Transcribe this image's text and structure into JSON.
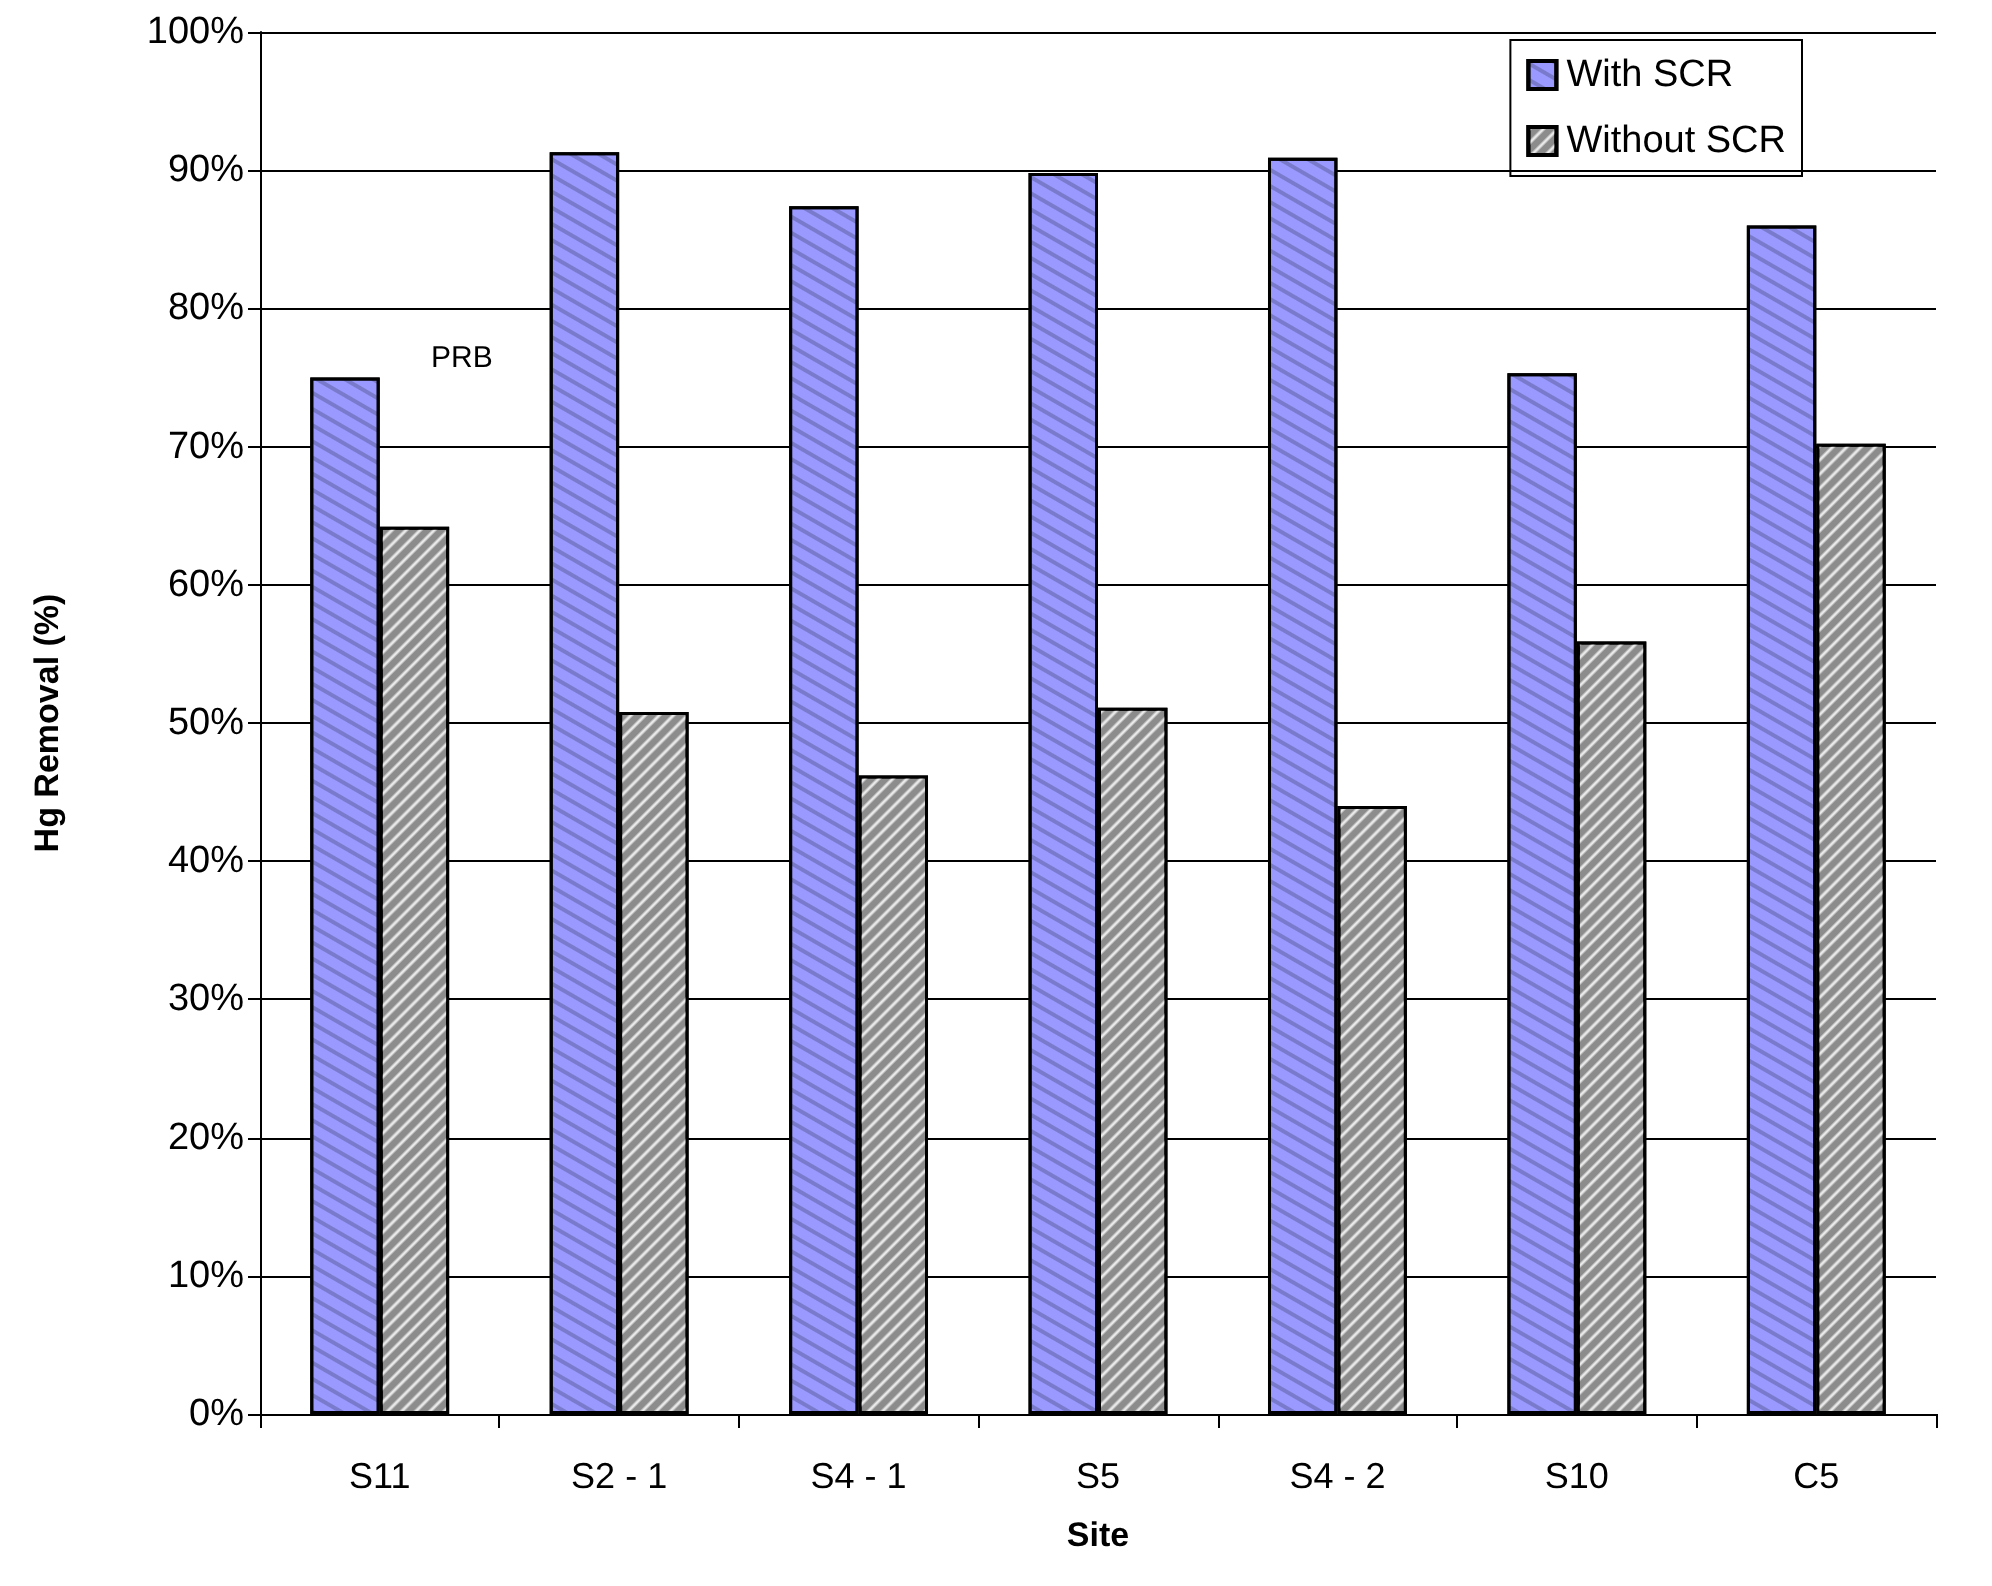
{
  "chart_data": {
    "type": "bar",
    "xlabel": "Site",
    "ylabel": "Hg Removal (%)",
    "categories": [
      "S11",
      "S2 - 1",
      "S4 - 1",
      "S5",
      "S4 - 2",
      "S10",
      "C5"
    ],
    "series": [
      {
        "name": "With SCR",
        "color": "#9999ff",
        "values": [
          75,
          91.3,
          87.4,
          89.8,
          90.9,
          75.3,
          86
        ]
      },
      {
        "name": "Without SCR",
        "color": "#8c8c8c",
        "values": [
          64.2,
          50.8,
          46.2,
          51.1,
          44,
          55.9,
          70.2
        ]
      }
    ],
    "ylim": [
      0,
      100
    ],
    "yticks": [
      {
        "value": 0,
        "label": "0%"
      },
      {
        "value": 10,
        "label": "10%"
      },
      {
        "value": 20,
        "label": "20%"
      },
      {
        "value": 30,
        "label": "30%"
      },
      {
        "value": 40,
        "label": "40%"
      },
      {
        "value": 50,
        "label": "50%"
      },
      {
        "value": 60,
        "label": "60%"
      },
      {
        "value": 70,
        "label": "70%"
      },
      {
        "value": 80,
        "label": "80%"
      },
      {
        "value": 90,
        "label": "90%"
      },
      {
        "value": 100,
        "label": "100%"
      }
    ],
    "annotations": [
      {
        "text": "PRB",
        "x": "S11",
        "y": 75
      }
    ],
    "grid": "y",
    "legend": "top right"
  }
}
